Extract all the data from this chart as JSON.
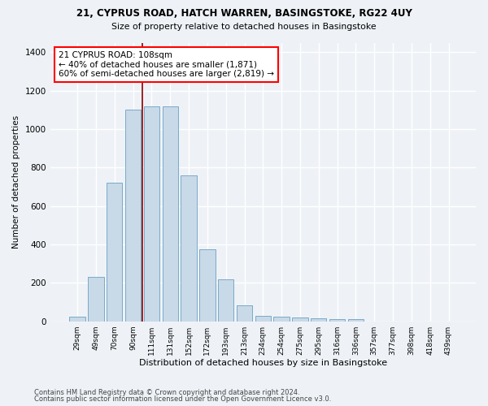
{
  "title1": "21, CYPRUS ROAD, HATCH WARREN, BASINGSTOKE, RG22 4UY",
  "title2": "Size of property relative to detached houses in Basingstoke",
  "xlabel": "Distribution of detached houses by size in Basingstoke",
  "ylabel": "Number of detached properties",
  "categories": [
    "29sqm",
    "49sqm",
    "70sqm",
    "90sqm",
    "111sqm",
    "131sqm",
    "152sqm",
    "172sqm",
    "193sqm",
    "213sqm",
    "234sqm",
    "254sqm",
    "275sqm",
    "295sqm",
    "316sqm",
    "336sqm",
    "357sqm",
    "377sqm",
    "398sqm",
    "418sqm",
    "439sqm"
  ],
  "values": [
    25,
    230,
    720,
    1100,
    1120,
    1120,
    760,
    375,
    220,
    85,
    28,
    25,
    20,
    15,
    10,
    12,
    0,
    0,
    0,
    0,
    0
  ],
  "bar_color": "#c8d9e8",
  "bar_edge_color": "#7aaac8",
  "red_line_index": 4.0,
  "annotation_text": "21 CYPRUS ROAD: 108sqm\n← 40% of detached houses are smaller (1,871)\n60% of semi-detached houses are larger (2,819) →",
  "annotation_box_color": "white",
  "annotation_box_edge_color": "red",
  "ylim": [
    0,
    1450
  ],
  "yticks": [
    0,
    200,
    400,
    600,
    800,
    1000,
    1200,
    1400
  ],
  "footer1": "Contains HM Land Registry data © Crown copyright and database right 2024.",
  "footer2": "Contains public sector information licensed under the Open Government Licence v3.0.",
  "bg_color": "#eef2f7",
  "grid_color": "white"
}
